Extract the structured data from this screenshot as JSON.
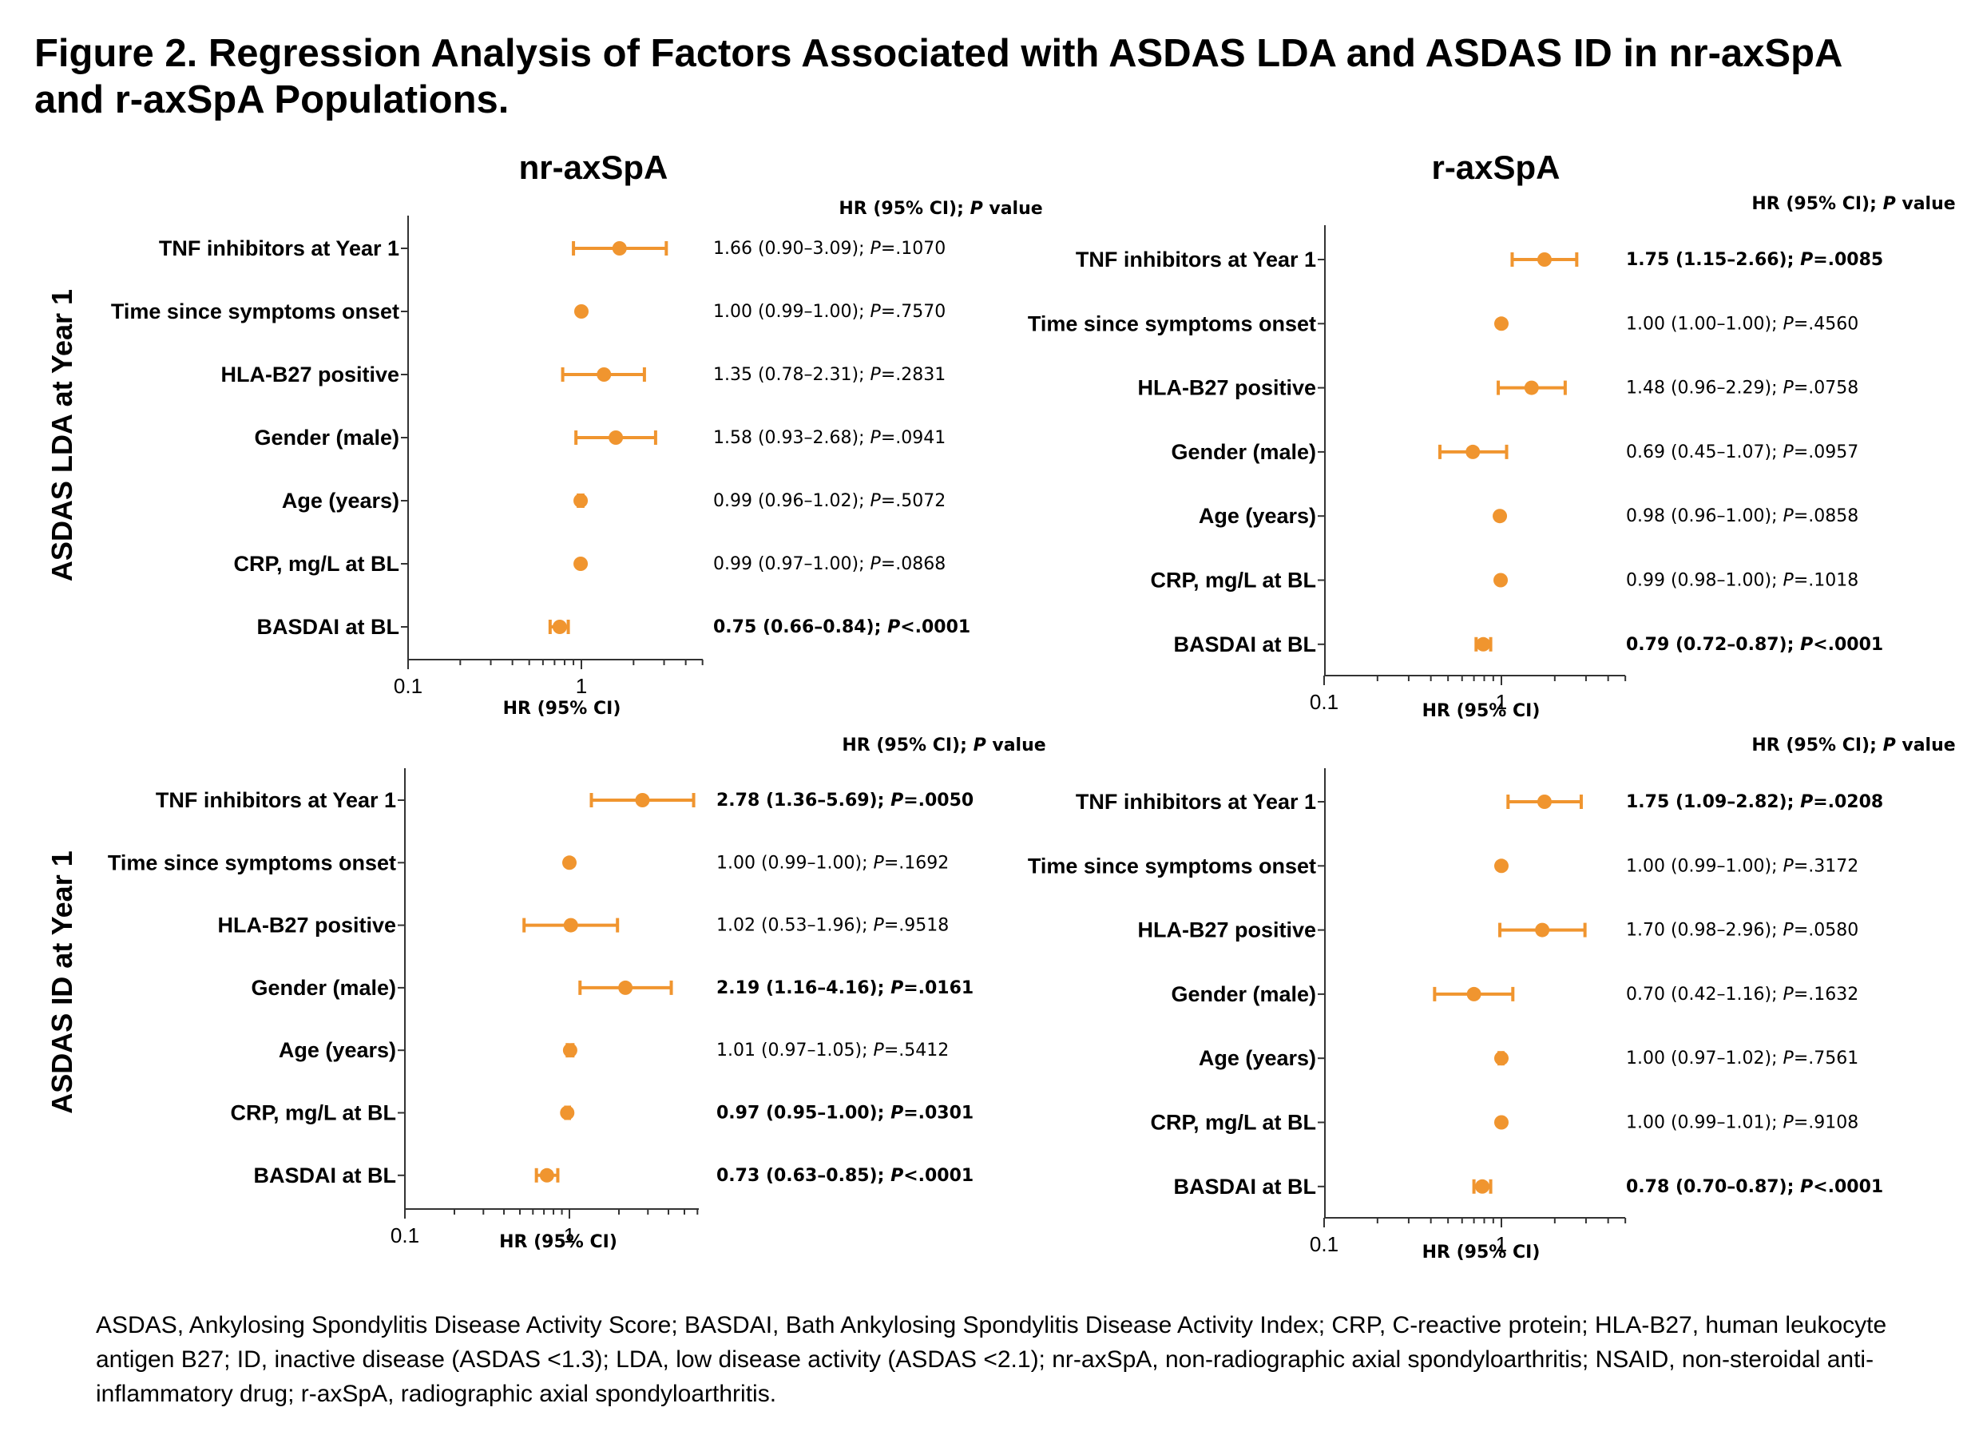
{
  "figure_title": "Figure 2. Regression Analysis of Factors Associated with ASDAS LDA and ASDAS ID in nr-axSpA and r-axSpA Populations.",
  "column_titles": [
    "nr-axSpA",
    "r-axSpA"
  ],
  "row_titles": [
    "ASDAS LDA at Year 1",
    "ASDAS ID at Year 1"
  ],
  "footnote": "ASDAS, Ankylosing Spondylitis Disease Activity Score; BASDAI, Bath Ankylosing Spondylitis Disease Activity Index; CRP, C-reactive protein; HLA-B27, human leukocyte antigen B27; ID, inactive disease (ASDAS <1.3); LDA, low disease activity (ASDAS <2.1); nr-axSpA, non-radiographic axial spondyloarthritis; NSAID, non-steroidal anti-inflammatory drug; r-axSpA, radiographic axial spondyloarthritis.",
  "colors": {
    "marker": "#F0952F",
    "axis": "#333333",
    "text": "#000000"
  },
  "chart_data": [
    {
      "type": "forest",
      "population": "nr-axSpA",
      "outcome": "ASDAS LDA at Year 1",
      "xlabel": "HR (95% CI)",
      "xscale": "log",
      "xlim": [
        0.1,
        6
      ],
      "xticks": [
        "0.1",
        "1"
      ],
      "column_header": "HR (95% CI); P value",
      "rows": [
        {
          "label": "TNF inhibitors at Year 1",
          "hr": 1.66,
          "lo": 0.9,
          "hi": 3.09,
          "stat_text": "1.66 (0.90–3.09); ",
          "p_prefix": "P",
          "p_text": "=.1070",
          "bold": false
        },
        {
          "label": "Time since symptoms onset",
          "hr": 1.0,
          "lo": 0.99,
          "hi": 1.0,
          "stat_text": "1.00 (0.99–1.00); ",
          "p_prefix": "P",
          "p_text": "=.7570",
          "bold": false
        },
        {
          "label": "HLA-B27 positive",
          "hr": 1.35,
          "lo": 0.78,
          "hi": 2.31,
          "stat_text": "1.35 (0.78–2.31); ",
          "p_prefix": "P",
          "p_text": "=.2831",
          "bold": false
        },
        {
          "label": "Gender (male)",
          "hr": 1.58,
          "lo": 0.93,
          "hi": 2.68,
          "stat_text": "1.58 (0.93–2.68); ",
          "p_prefix": "P",
          "p_text": "=.0941",
          "bold": false
        },
        {
          "label": "Age (years)",
          "hr": 0.99,
          "lo": 0.96,
          "hi": 1.02,
          "stat_text": "0.99 (0.96–1.02); ",
          "p_prefix": "P",
          "p_text": "=.5072",
          "bold": false
        },
        {
          "label": "CRP, mg/L at BL",
          "hr": 0.99,
          "lo": 0.97,
          "hi": 1.0,
          "stat_text": "0.99 (0.97–1.00); ",
          "p_prefix": "P",
          "p_text": "=.0868",
          "bold": false
        },
        {
          "label": "BASDAI at BL",
          "hr": 0.75,
          "lo": 0.66,
          "hi": 0.84,
          "stat_text": "0.75 (0.66–0.84); ",
          "p_prefix": "P",
          "p_text": "<.0001",
          "bold": true
        }
      ]
    },
    {
      "type": "forest",
      "population": "r-axSpA",
      "outcome": "ASDAS LDA at Year 1",
      "xlabel": "HR (95% CI)",
      "xscale": "log",
      "xlim": [
        0.1,
        6
      ],
      "xticks": [
        "0.1",
        "1"
      ],
      "column_header": "HR (95% CI); P value",
      "rows": [
        {
          "label": "TNF inhibitors at Year 1",
          "hr": 1.75,
          "lo": 1.15,
          "hi": 2.66,
          "stat_text": "1.75 (1.15–2.66); ",
          "p_prefix": "P",
          "p_text": "=.0085",
          "bold": true
        },
        {
          "label": "Time since symptoms onset",
          "hr": 1.0,
          "lo": 1.0,
          "hi": 1.0,
          "stat_text": "1.00 (1.00–1.00); ",
          "p_prefix": "P",
          "p_text": "=.4560",
          "bold": false
        },
        {
          "label": "HLA-B27 positive",
          "hr": 1.48,
          "lo": 0.96,
          "hi": 2.29,
          "stat_text": "1.48 (0.96–2.29); ",
          "p_prefix": "P",
          "p_text": "=.0758",
          "bold": false
        },
        {
          "label": "Gender (male)",
          "hr": 0.69,
          "lo": 0.45,
          "hi": 1.07,
          "stat_text": "0.69 (0.45–1.07); ",
          "p_prefix": "P",
          "p_text": "=.0957",
          "bold": false
        },
        {
          "label": "Age (years)",
          "hr": 0.98,
          "lo": 0.96,
          "hi": 1.0,
          "stat_text": "0.98 (0.96–1.00); ",
          "p_prefix": "P",
          "p_text": "=.0858",
          "bold": false
        },
        {
          "label": "CRP, mg/L at BL",
          "hr": 0.99,
          "lo": 0.98,
          "hi": 1.0,
          "stat_text": "0.99 (0.98–1.00); ",
          "p_prefix": "P",
          "p_text": "=.1018",
          "bold": false
        },
        {
          "label": "BASDAI at BL",
          "hr": 0.79,
          "lo": 0.72,
          "hi": 0.87,
          "stat_text": "0.79 (0.72–0.87); ",
          "p_prefix": "P",
          "p_text": "<.0001",
          "bold": true
        }
      ]
    },
    {
      "type": "forest",
      "population": "nr-axSpA",
      "outcome": "ASDAS ID at Year 1",
      "xlabel": "HR (95% CI)",
      "xscale": "log",
      "xlim": [
        0.1,
        6
      ],
      "xticks": [
        "0.1",
        "1"
      ],
      "column_header": "HR (95% CI); P value",
      "rows": [
        {
          "label": "TNF inhibitors at Year 1",
          "hr": 2.78,
          "lo": 1.36,
          "hi": 5.69,
          "stat_text": "2.78 (1.36–5.69); ",
          "p_prefix": "P",
          "p_text": "=.0050",
          "bold": true
        },
        {
          "label": "Time since symptoms onset",
          "hr": 1.0,
          "lo": 0.99,
          "hi": 1.0,
          "stat_text": "1.00 (0.99–1.00); ",
          "p_prefix": "P",
          "p_text": "=.1692",
          "bold": false
        },
        {
          "label": "HLA-B27 positive",
          "hr": 1.02,
          "lo": 0.53,
          "hi": 1.96,
          "stat_text": "1.02 (0.53–1.96); ",
          "p_prefix": "P",
          "p_text": "=.9518",
          "bold": false
        },
        {
          "label": "Gender (male)",
          "hr": 2.19,
          "lo": 1.16,
          "hi": 4.16,
          "stat_text": "2.19 (1.16–4.16); ",
          "p_prefix": "P",
          "p_text": "=.0161",
          "bold": true
        },
        {
          "label": "Age (years)",
          "hr": 1.01,
          "lo": 0.97,
          "hi": 1.05,
          "stat_text": "1.01 (0.97–1.05); ",
          "p_prefix": "P",
          "p_text": "=.5412",
          "bold": false
        },
        {
          "label": "CRP, mg/L at BL",
          "hr": 0.97,
          "lo": 0.95,
          "hi": 1.0,
          "stat_text": "0.97 (0.95–1.00); ",
          "p_prefix": "P",
          "p_text": "=.0301",
          "bold": true
        },
        {
          "label": "BASDAI at BL",
          "hr": 0.73,
          "lo": 0.63,
          "hi": 0.85,
          "stat_text": "0.73 (0.63–0.85); ",
          "p_prefix": "P",
          "p_text": "<.0001",
          "bold": true
        }
      ]
    },
    {
      "type": "forest",
      "population": "r-axSpA",
      "outcome": "ASDAS ID at Year 1",
      "xlabel": "HR (95% CI)",
      "xscale": "log",
      "xlim": [
        0.1,
        6
      ],
      "xticks": [
        "0.1",
        "1"
      ],
      "column_header": "HR (95% CI); P value",
      "rows": [
        {
          "label": "TNF inhibitors at Year 1",
          "hr": 1.75,
          "lo": 1.09,
          "hi": 2.82,
          "stat_text": "1.75 (1.09–2.82); ",
          "p_prefix": "P",
          "p_text": "=.0208",
          "bold": true
        },
        {
          "label": "Time since symptoms onset",
          "hr": 1.0,
          "lo": 0.99,
          "hi": 1.0,
          "stat_text": "1.00 (0.99–1.00); ",
          "p_prefix": "P",
          "p_text": "=.3172",
          "bold": false
        },
        {
          "label": "HLA-B27 positive",
          "hr": 1.7,
          "lo": 0.98,
          "hi": 2.96,
          "stat_text": "1.70 (0.98–2.96); ",
          "p_prefix": "P",
          "p_text": "=.0580",
          "bold": false
        },
        {
          "label": "Gender (male)",
          "hr": 0.7,
          "lo": 0.42,
          "hi": 1.16,
          "stat_text": "0.70 (0.42–1.16); ",
          "p_prefix": "P",
          "p_text": "=.1632",
          "bold": false
        },
        {
          "label": "Age (years)",
          "hr": 1.0,
          "lo": 0.97,
          "hi": 1.02,
          "stat_text": "1.00 (0.97–1.02); ",
          "p_prefix": "P",
          "p_text": "=.7561",
          "bold": false
        },
        {
          "label": "CRP, mg/L at BL",
          "hr": 1.0,
          "lo": 0.99,
          "hi": 1.01,
          "stat_text": "1.00 (0.99–1.01); ",
          "p_prefix": "P",
          "p_text": "=.9108",
          "bold": false
        },
        {
          "label": "BASDAI at BL",
          "hr": 0.78,
          "lo": 0.7,
          "hi": 0.87,
          "stat_text": "0.78 (0.70–0.87); ",
          "p_prefix": "P",
          "p_text": "<.0001",
          "bold": true
        }
      ]
    }
  ]
}
